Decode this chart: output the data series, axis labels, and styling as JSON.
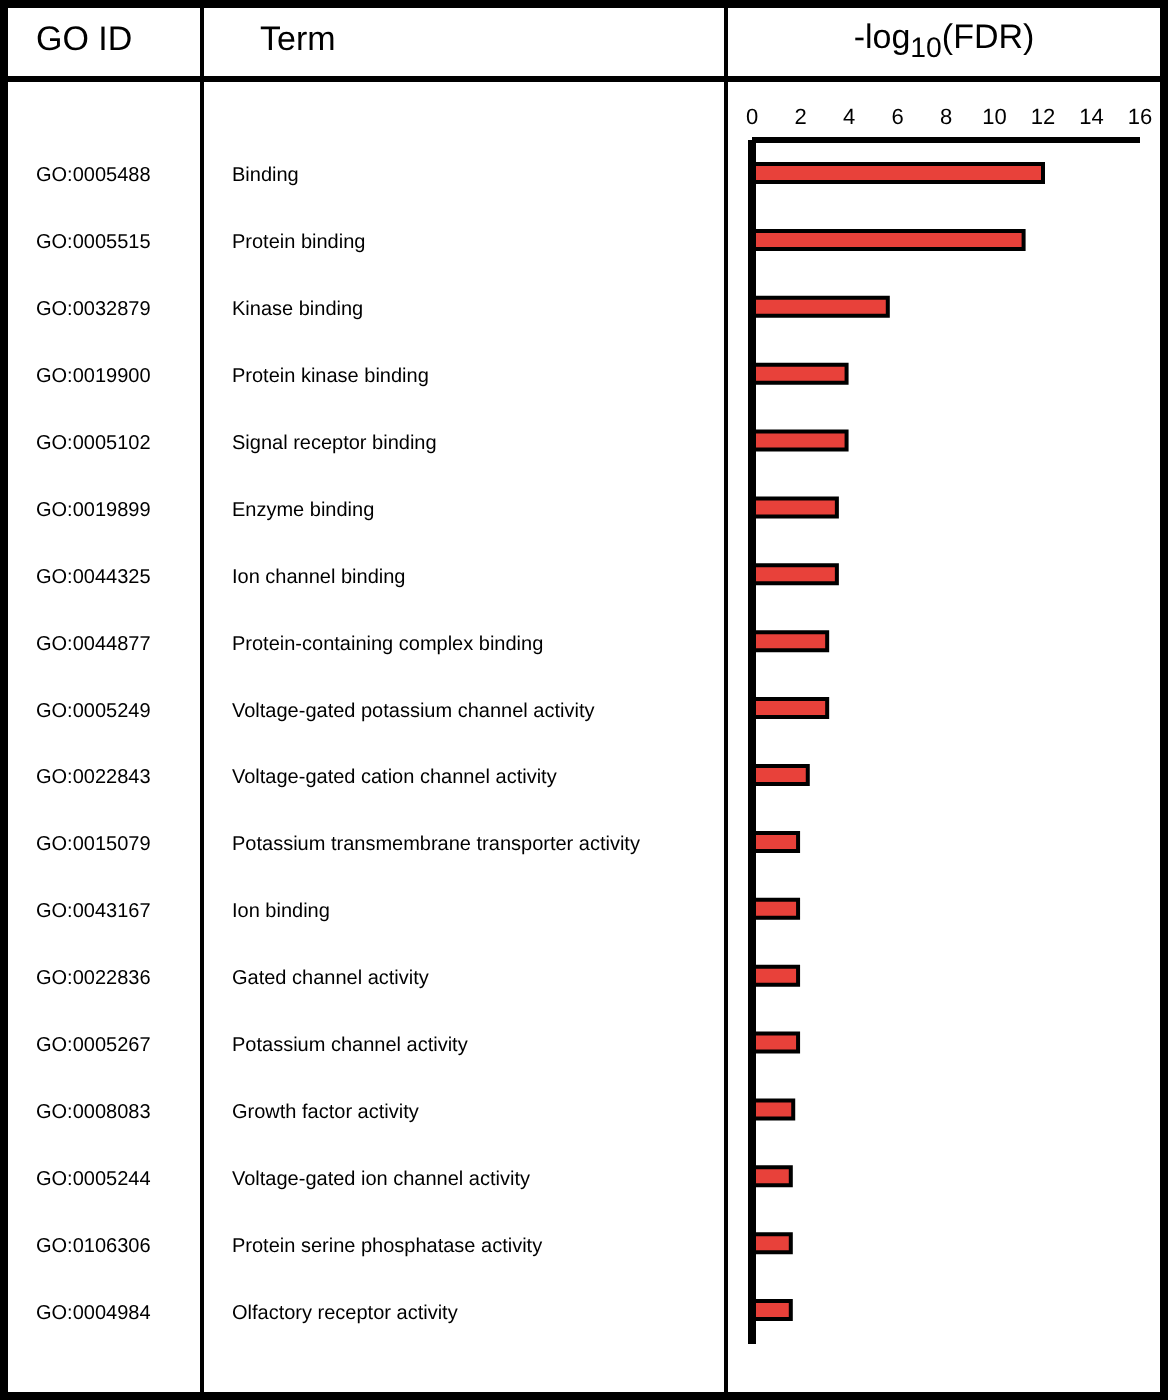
{
  "chart_data": {
    "type": "bar",
    "orientation": "horizontal",
    "xlabel": "-log$_{10}$(FDR)",
    "categories": [
      "Binding",
      "Protein binding",
      "Kinase binding",
      "Protein kinase binding",
      "Signal receptor binding",
      "Enzyme binding",
      "Ion channel binding",
      "Protein-containing complex binding",
      "Voltage-gated potassium channel activity",
      "Voltage-gated cation channel activity",
      "Potassium transmembrane transporter activity",
      "Ion binding",
      "Gated channel activity",
      "Potassium channel activity",
      "Growth factor activity",
      "Voltage-gated ion channel activity",
      "Protein serine phosphatase activity",
      "Olfactory receptor activity"
    ],
    "values": [
      12.0,
      11.2,
      5.6,
      3.9,
      3.9,
      3.5,
      3.5,
      3.1,
      3.1,
      2.3,
      1.9,
      1.9,
      1.9,
      1.9,
      1.7,
      1.6,
      1.6,
      1.6
    ],
    "color": "#e8413a",
    "xlim": [
      0,
      16
    ],
    "xticks": [
      0,
      2,
      4,
      6,
      8,
      10,
      12,
      14,
      16
    ],
    "annotations": [
      "GO ID",
      "Term",
      "GO:0005488",
      "GO:0005515",
      "GO:0032879",
      "GO:0019900",
      "GO:0005102",
      "GO:0019899",
      "GO:0044325",
      "GO:0044877",
      "GO:0005249",
      "GO:0022843",
      "GO:0015079",
      "GO:0043167",
      "GO:0022836",
      "GO:0005267",
      "GO:0008083",
      "GO:0005244",
      "GO:0106306",
      "GO:0004984"
    ]
  }
}
